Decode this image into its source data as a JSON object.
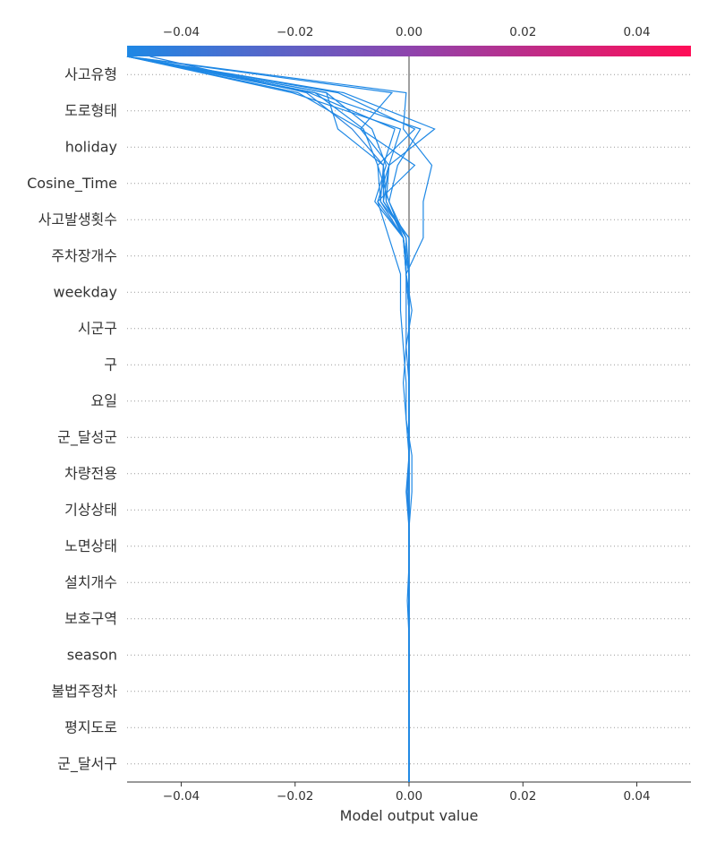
{
  "chart_data": {
    "type": "line",
    "xlabel": "Model output value",
    "xlim": [
      -0.0495,
      0.0495
    ],
    "x_ticks": [
      -0.04,
      -0.02,
      0.0,
      0.02,
      0.04
    ],
    "x_tick_labels": [
      "−0.04",
      "−0.02",
      "0.00",
      "0.02",
      "0.04"
    ],
    "features": [
      "사고유형",
      "도로형태",
      "holiday",
      "Cosine_Time",
      "사고발생횟수",
      "주차장개수",
      "weekday",
      "시군구",
      "구",
      "요일",
      "군_달성군",
      "차량전용",
      "기상상태",
      "노면상태",
      "설치개수",
      "보호구역",
      "season",
      "불법주정차",
      "평지도로",
      "군_달서구"
    ],
    "base_value": 0.0,
    "colorbar": {
      "from": "#1E88E5",
      "mid": "#8E44AD",
      "to": "#FF0D57"
    },
    "series": [
      {
        "values": [
          0.0,
          0.0,
          0.0,
          0.0,
          0.0,
          -0.0003,
          0.0,
          0.0,
          0.0005,
          0.0005,
          -0.0005,
          -0.001,
          -0.0005,
          0.0005,
          -0.0005,
          0.0025,
          0.0025,
          0.004,
          -0.001,
          -0.0005,
          -0.0495
        ]
      },
      {
        "values": [
          0.0,
          0.0,
          0.0,
          0.0,
          0.0,
          0.0,
          0.0,
          0.0,
          -0.0005,
          0.0,
          -0.0005,
          -0.0005,
          -0.001,
          -0.0015,
          -0.0015,
          -0.0035,
          -0.0055,
          0.001,
          -0.0085,
          -0.003,
          -0.0495
        ]
      },
      {
        "values": [
          0.0,
          0.0,
          0.0,
          0.0,
          0.0,
          0.0,
          0.0,
          0.0,
          -0.0003,
          0.0,
          0.0,
          0.0,
          0.0,
          0.0,
          0.0,
          -0.001,
          -0.004,
          -0.0045,
          -0.0125,
          -0.0145,
          -0.0495
        ]
      },
      {
        "values": [
          0.0,
          0.0,
          0.0,
          0.0,
          0.0,
          0.0,
          0.0,
          0.0,
          -0.0003,
          0.0,
          0.0,
          0.0,
          -0.0005,
          -0.0005,
          -0.0005,
          -0.001,
          -0.005,
          -0.0045,
          -0.01,
          -0.018,
          -0.0455
        ]
      },
      {
        "values": [
          0.0,
          0.0,
          0.0,
          0.0,
          0.0,
          0.0,
          0.0,
          0.0,
          0.0,
          0.0,
          0.0,
          0.0,
          0.0,
          0.0,
          -0.0005,
          -0.001,
          -0.0055,
          -0.0035,
          -0.0085,
          -0.0195,
          -0.0495
        ]
      },
      {
        "values": [
          0.0,
          0.0,
          0.0,
          0.0,
          0.0,
          0.0,
          0.0,
          0.0,
          0.0,
          0.0,
          0.0,
          0.0,
          0.0,
          0.0,
          -0.0005,
          -0.0005,
          -0.0045,
          -0.0035,
          -0.0015,
          -0.0205,
          -0.0495
        ]
      },
      {
        "values": [
          0.0,
          0.0,
          0.0,
          0.0,
          0.0,
          0.0,
          0.0,
          0.0,
          0.0,
          0.0,
          0.0,
          0.0,
          0.0,
          0.0,
          -0.0005,
          -0.001,
          -0.0035,
          -0.002,
          0.002,
          -0.0165,
          -0.0495
        ]
      },
      {
        "values": [
          0.0,
          0.0,
          0.0,
          0.0,
          0.0,
          0.0,
          0.0,
          0.0,
          0.0,
          0.0,
          0.0,
          0.0,
          0.0,
          0.0,
          0.0,
          -0.001,
          -0.004,
          -0.0035,
          0.0045,
          -0.0115,
          -0.0495
        ]
      },
      {
        "values": [
          0.0,
          0.0,
          0.0,
          0.0,
          0.0,
          0.0,
          0.0,
          0.0,
          0.0,
          0.0,
          0.0,
          0.0,
          0.0,
          0.0,
          0.0,
          -0.001,
          -0.006,
          -0.004,
          -0.0065,
          -0.0145,
          -0.0495
        ]
      },
      {
        "values": [
          0.0,
          0.0,
          0.0,
          0.0,
          0.0,
          0.0,
          0.0,
          0.0,
          0.0,
          0.0,
          0.0,
          0.0,
          0.0,
          0.0,
          0.0,
          -0.0005,
          -0.0035,
          -0.0055,
          0.001,
          -0.0125,
          -0.0495
        ]
      },
      {
        "values": [
          0.0,
          0.0,
          0.0,
          0.0,
          0.0,
          0.0,
          0.0,
          0.0,
          0.0,
          0.0,
          0.0,
          0.0,
          0.0,
          0.0,
          0.0,
          0.0,
          -0.005,
          -0.0055,
          -0.008,
          -0.0165,
          -0.0495
        ]
      },
      {
        "values": [
          0.0,
          0.0,
          0.0,
          0.0,
          0.0,
          0.0,
          0.0,
          0.0,
          0.0,
          0.0,
          0.0,
          0.0,
          0.0,
          0.0,
          0.0,
          0.0,
          -0.0045,
          -0.0045,
          -0.0025,
          -0.0175,
          -0.0495
        ]
      }
    ]
  }
}
